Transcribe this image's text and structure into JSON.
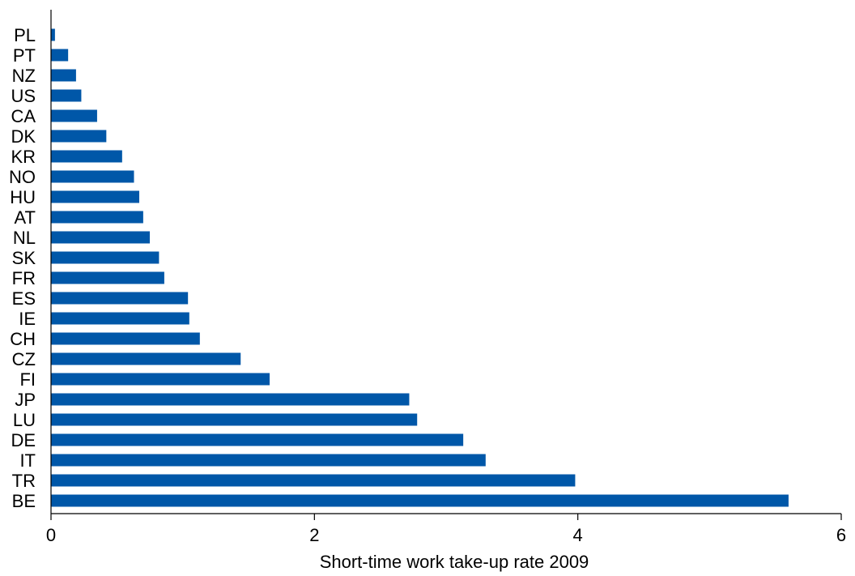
{
  "chart_data": {
    "type": "bar",
    "orientation": "horizontal",
    "title": "",
    "xlabel": "Short-time work take-up rate 2009",
    "ylabel": "",
    "xlim": [
      0,
      6
    ],
    "x_ticks": [
      0,
      2,
      4,
      6
    ],
    "grid": false,
    "bar_color": "#0057a8",
    "categories": [
      "PL",
      "PT",
      "NZ",
      "US",
      "CA",
      "DK",
      "KR",
      "NO",
      "HU",
      "AT",
      "NL",
      "SK",
      "FR",
      "ES",
      "IE",
      "CH",
      "CZ",
      "FI",
      "JP",
      "LU",
      "DE",
      "IT",
      "TR",
      "BE"
    ],
    "values": [
      0.03,
      0.13,
      0.19,
      0.23,
      0.35,
      0.42,
      0.54,
      0.63,
      0.67,
      0.7,
      0.75,
      0.82,
      0.86,
      1.04,
      1.05,
      1.13,
      1.44,
      1.66,
      2.72,
      2.78,
      3.13,
      3.3,
      3.98,
      5.6
    ]
  }
}
